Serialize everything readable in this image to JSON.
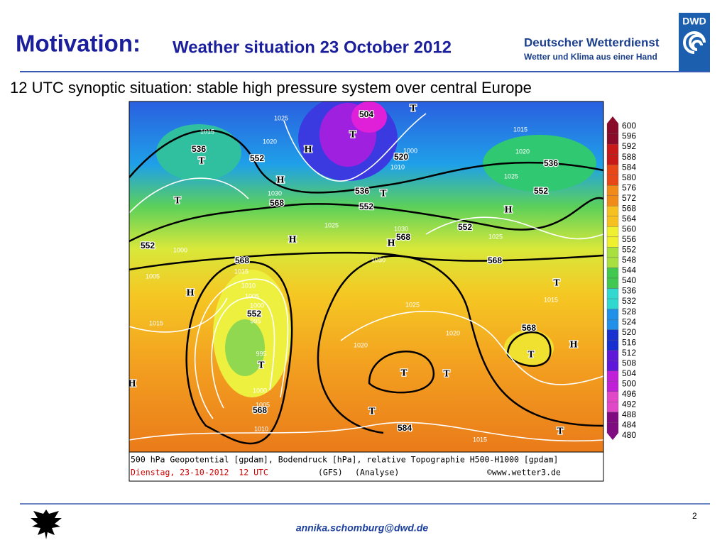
{
  "header": {
    "title": "Motivation:",
    "subtitle": "Weather situation 23 October 2012"
  },
  "logo": {
    "abbr": "DWD",
    "name": "Deutscher Wetterdienst",
    "tagline": "Wetter und Klima aus einer Hand"
  },
  "slide": {
    "heading": "12 UTC synoptic situation: stable high pressure system over central Europe"
  },
  "map": {
    "colorbar_labels": [
      600,
      596,
      592,
      588,
      584,
      580,
      576,
      572,
      568,
      564,
      560,
      556,
      552,
      548,
      544,
      540,
      536,
      532,
      528,
      524,
      520,
      516,
      512,
      508,
      504,
      500,
      496,
      492,
      488,
      484,
      480
    ],
    "contour_labels": [
      "552",
      "536",
      "504",
      "520",
      "536",
      "552",
      "552",
      "536",
      "568",
      "552",
      "552",
      "568",
      "568",
      "568",
      "552",
      "568",
      "568",
      "584"
    ],
    "pressure_systems": [
      "T",
      "H",
      "T",
      "T",
      "H",
      "T",
      "T",
      "H",
      "H",
      "H",
      "H",
      "T",
      "T",
      "T",
      "T",
      "T",
      "H",
      "T",
      "T",
      "H"
    ],
    "isobar_labels": [
      "1015",
      "1025",
      "1020",
      "1030",
      "1025",
      "1030",
      "1030",
      "1015",
      "1010",
      "1005",
      "1000",
      "995",
      "995",
      "1000",
      "1005",
      "1010",
      "1015",
      "1005",
      "1000",
      "1025",
      "1020",
      "1020",
      "1015",
      "1015",
      "1025",
      "1025",
      "1015",
      "1020",
      "1000",
      "1010"
    ],
    "caption": {
      "line1": "500 hPa Geopotential [gpdam], Bodendruck [hPa], relative Topographie H500-H1000 [gpdam]",
      "date": "Dienstag, 23-10-2012  12 UTC",
      "model": "(GFS)",
      "run": "(Analyse)",
      "source": "©www.wetter3.de"
    }
  },
  "footer": {
    "email": "annika.schomburg@dwd.de",
    "page": "2"
  }
}
